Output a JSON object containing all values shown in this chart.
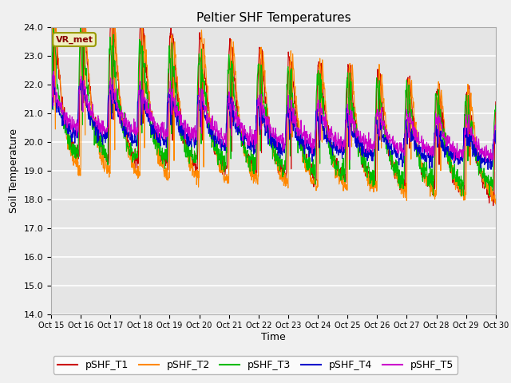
{
  "title": "Peltier SHF Temperatures",
  "ylabel": "Soil Temperature",
  "xlabel": "Time",
  "ylim": [
    14.0,
    24.0
  ],
  "yticks": [
    14.0,
    15.0,
    16.0,
    17.0,
    18.0,
    19.0,
    20.0,
    21.0,
    22.0,
    23.0,
    24.0
  ],
  "xtick_labels": [
    "Oct 15",
    "Oct 16",
    "Oct 17",
    "Oct 18",
    "Oct 19",
    "Oct 20",
    "Oct 21",
    "Oct 22",
    "Oct 23",
    "Oct 24",
    "Oct 25",
    "Oct 26",
    "Oct 27",
    "Oct 28",
    "Oct 29",
    "Oct 30"
  ],
  "line_colors": [
    "#cc0000",
    "#ff8800",
    "#00bb00",
    "#0000cc",
    "#cc00cc"
  ],
  "line_labels": [
    "pSHF_T1",
    "pSHF_T2",
    "pSHF_T3",
    "pSHF_T4",
    "pSHF_T5"
  ],
  "legend_label": "VR_met",
  "bg_color": "#e5e5e5",
  "fig_bg_color": "#f0f0f0",
  "title_fontsize": 11,
  "axis_label_fontsize": 9,
  "tick_fontsize": 8,
  "legend_fontsize": 9
}
